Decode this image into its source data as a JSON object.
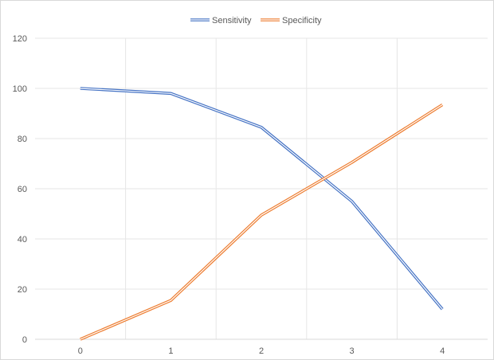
{
  "chart_data": {
    "type": "line",
    "x": [
      0,
      1,
      2,
      3,
      4
    ],
    "series": [
      {
        "name": "Sensitivity",
        "values": [
          100,
          98,
          84.5,
          55,
          12
        ],
        "color": "#4472c4"
      },
      {
        "name": "Specificity",
        "values": [
          0,
          15.5,
          49.5,
          70.5,
          93.5
        ],
        "color": "#ed7d31"
      }
    ],
    "ylim": [
      0,
      120
    ],
    "y_ticks": [
      0,
      20,
      40,
      60,
      80,
      100,
      120
    ],
    "x_ticks": [
      0,
      1,
      2,
      3,
      4
    ],
    "grid": true,
    "legend_position": "top",
    "line_style": "double"
  }
}
